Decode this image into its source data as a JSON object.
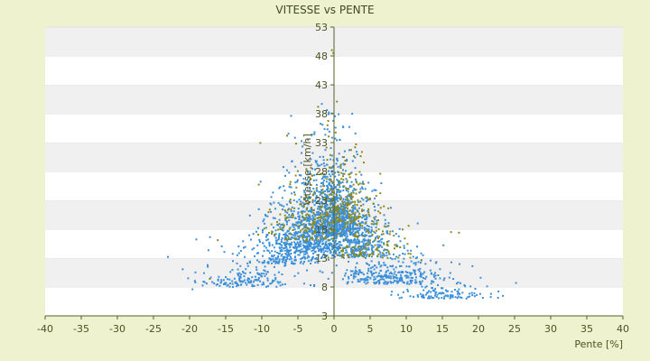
{
  "chart_data": {
    "type": "scatter",
    "title": "VITESSE vs PENTE",
    "xlabel": "Pente [%]",
    "ylabel": "Vitesse [km/h]",
    "xlim": [
      -40,
      40
    ],
    "ylim": [
      3,
      53
    ],
    "xticks": [
      "-40",
      "-35",
      "-30",
      "-25",
      "-20",
      "-15",
      "-10",
      "-5",
      "0",
      "5",
      "10",
      "15",
      "20",
      "25",
      "30",
      "35",
      "40"
    ],
    "yticks": [
      "3",
      "8",
      "13",
      "18",
      "23",
      "28",
      "33",
      "38",
      "43",
      "48",
      "53"
    ],
    "grid": "horizontal alternating bands",
    "legend": "none",
    "colors": {
      "page_background": "#eef2cf",
      "band_light": "#ffffff",
      "band_dark": "#f0f0f0",
      "axis": "#55602a",
      "series_blue": "#3b8fd9",
      "series_olive": "#8a8a1e"
    },
    "series": [
      {
        "color": "#3b8fd9",
        "points": [
          [
            -23,
            13.2
          ],
          [
            -20.2,
            9.5
          ],
          [
            -19.6,
            7.6
          ],
          [
            -18,
            10.4
          ],
          [
            -17.5,
            11.8
          ],
          [
            -14.8,
            8.2
          ],
          [
            -14,
            12.5
          ],
          [
            -12.5,
            14.8
          ],
          [
            -11.5,
            16.2
          ],
          [
            -10.5,
            18.2
          ],
          [
            -9.5,
            20.5
          ],
          [
            -8.7,
            22.3
          ],
          [
            -7.6,
            25.1
          ],
          [
            -6.5,
            28.2
          ],
          [
            -5.8,
            29.8
          ],
          [
            -4.5,
            31.2
          ],
          [
            -3.6,
            33.5
          ],
          [
            -2.7,
            34.8
          ],
          [
            -1.6,
            36.1
          ],
          [
            -0.9,
            35.3
          ],
          [
            0.4,
            33.4
          ],
          [
            1.5,
            31.5
          ],
          [
            2.6,
            29.8
          ],
          [
            4,
            26.2
          ],
          [
            5.5,
            22.4
          ],
          [
            7.1,
            19.6
          ],
          [
            8.6,
            17.2
          ],
          [
            10.2,
            14.3
          ],
          [
            12,
            12.2
          ],
          [
            13.5,
            10.4
          ],
          [
            15.2,
            9.2
          ],
          [
            17,
            8.6
          ],
          [
            18.9,
            8.1
          ],
          [
            20.3,
            9.6
          ],
          [
            21.2,
            8.1
          ],
          [
            25.2,
            8.7
          ]
        ],
        "cloud": [
          {
            "x": -12,
            "sx": 3.5,
            "y": 8,
            "sy": 2.5,
            "n": 160
          },
          {
            "x": -7,
            "sx": 3,
            "y": 12,
            "sy": 5,
            "n": 320
          },
          {
            "x": -3,
            "sx": 2.6,
            "y": 14,
            "sy": 7,
            "n": 520
          },
          {
            "x": 0,
            "sx": 1.6,
            "y": 17,
            "sy": 8,
            "n": 700
          },
          {
            "x": 3,
            "sx": 2.6,
            "y": 13,
            "sy": 6,
            "n": 460
          },
          {
            "x": 8,
            "sx": 3.5,
            "y": 8.5,
            "sy": 3,
            "n": 300
          },
          {
            "x": 15,
            "sx": 3,
            "y": 6,
            "sy": 1.3,
            "n": 110
          }
        ]
      },
      {
        "color": "#8a8a1e",
        "points": [
          [
            -0.3,
            49
          ],
          [
            -0.1,
            48.5
          ],
          [
            0.4,
            40.1
          ],
          [
            -2.2,
            39.2
          ],
          [
            -0.9,
            36
          ],
          [
            -6.5,
            34.2
          ],
          [
            6.4,
            27.6
          ],
          [
            16.2,
            17.5
          ],
          [
            17.3,
            17.4
          ],
          [
            9.8,
            16.4
          ],
          [
            12.1,
            12.6
          ],
          [
            -16.1,
            16.1
          ],
          [
            -17.2,
            9.4
          ],
          [
            -5.3,
            27.3
          ],
          [
            3.6,
            25.9
          ],
          [
            -8.9,
            21.4
          ],
          [
            10.3,
            13.8
          ]
        ],
        "cloud": [
          {
            "x": -4,
            "sx": 3,
            "y": 16,
            "sy": 6,
            "n": 140
          },
          {
            "x": 1,
            "sx": 2,
            "y": 19,
            "sy": 7,
            "n": 200
          },
          {
            "x": 5,
            "sx": 3,
            "y": 13,
            "sy": 4,
            "n": 120
          }
        ]
      }
    ]
  }
}
